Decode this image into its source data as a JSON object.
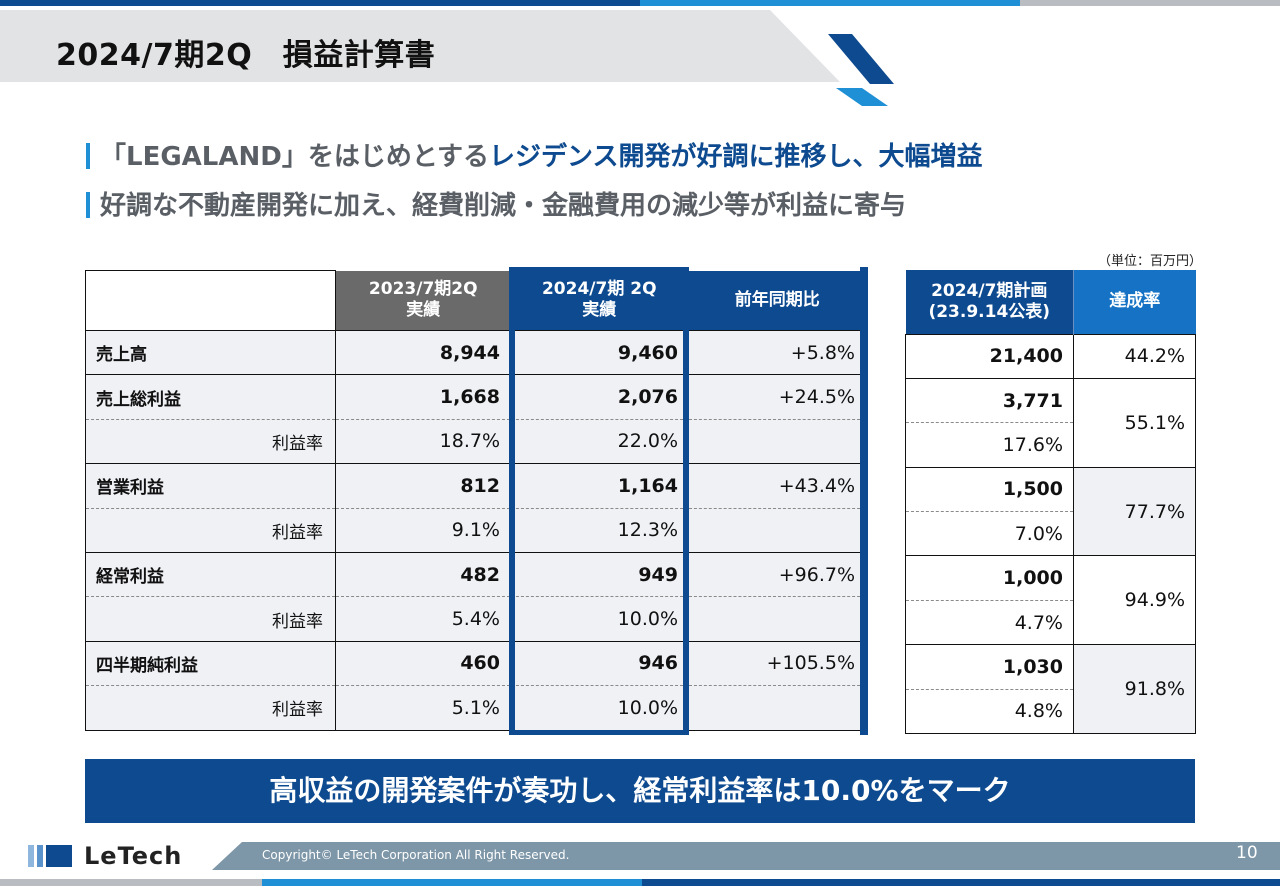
{
  "title": "2024/7期2Q　損益計算書",
  "headlines": {
    "line1_prefix": "「LEGALAND」をはじめとする",
    "line1_highlight": "レジデンス開発が好調に推移し、大幅増益",
    "line2": "好調な不動産開発に加え、経費削減・金融費用の減少等が利益に寄与"
  },
  "unit_note": "（単位：百万円）",
  "main_table": {
    "headers": {
      "prev": [
        "2023/7期2Q",
        "実績"
      ],
      "cur": [
        "2024/7期 2Q",
        "実績"
      ],
      "yoy": "前年同期比"
    },
    "rows": [
      {
        "label": "売上高",
        "type": "item",
        "prev": "8,944",
        "cur": "9,460",
        "yoy": "+5.8%"
      },
      {
        "label": "売上総利益",
        "type": "item",
        "prev": "1,668",
        "cur": "2,076",
        "yoy": "+24.5%"
      },
      {
        "label": "利益率",
        "type": "sub",
        "prev": "18.7%",
        "cur": "22.0%",
        "yoy": ""
      },
      {
        "label": "営業利益",
        "type": "item",
        "prev": "812",
        "cur": "1,164",
        "yoy": "+43.4%"
      },
      {
        "label": "利益率",
        "type": "sub",
        "prev": "9.1%",
        "cur": "12.3%",
        "yoy": ""
      },
      {
        "label": "経常利益",
        "type": "item",
        "prev": "482",
        "cur": "949",
        "yoy": "+96.7%"
      },
      {
        "label": "利益率",
        "type": "sub",
        "prev": "5.4%",
        "cur": "10.0%",
        "yoy": ""
      },
      {
        "label": "四半期純利益",
        "type": "item",
        "prev": "460",
        "cur": "946",
        "yoy": "+105.5%"
      },
      {
        "label": "利益率",
        "type": "sub",
        "prev": "5.1%",
        "cur": "10.0%",
        "yoy": ""
      }
    ]
  },
  "plan_table": {
    "headers": {
      "plan": [
        "2024/7期計画",
        "(23.9.14公表)"
      ],
      "rate": "達成率"
    },
    "plan_values": [
      "21,400",
      "3,771",
      "17.6%",
      "1,500",
      "7.0%",
      "1,000",
      "4.7%",
      "1,030",
      "4.8%"
    ],
    "rates": [
      "44.2%",
      "55.1%",
      "77.7%",
      "94.9%",
      "91.8%"
    ]
  },
  "banner": "高収益の開発案件が奏功し、経常利益率は10.0%をマーク",
  "footer": {
    "brand": "LeTech",
    "copyright": "Copyright© LeTech Corporation All Right Reserved.",
    "page_number": "10"
  },
  "colors": {
    "navy": "#0d4a8f",
    "accent_blue": "#1f8fd6",
    "gray_header": "#6a6a6a",
    "row_shade": "#eff1f5"
  }
}
